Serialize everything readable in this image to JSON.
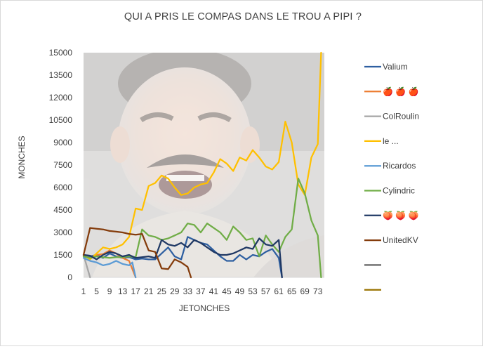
{
  "chart_data": {
    "type": "line",
    "title": "QUI A PRIS LE COMPAS DANS LE TROU A PIPI ?",
    "xlabel": "JETONCHES",
    "ylabel": "MONCHES",
    "ylim": [
      0,
      15000
    ],
    "xlim": [
      1,
      75
    ],
    "y_ticks": [
      0,
      1500,
      3000,
      4500,
      6000,
      7500,
      9000,
      10500,
      12000,
      13500,
      15000
    ],
    "x_ticks": [
      1,
      5,
      9,
      13,
      17,
      21,
      25,
      29,
      33,
      37,
      41,
      45,
      49,
      53,
      57,
      61,
      65,
      69,
      73
    ],
    "y_tick_labels": [
      "0",
      "1500",
      "3000",
      "4500",
      "6000",
      "7500",
      "9000",
      "10500",
      "12000",
      "13500",
      "15000"
    ],
    "x_tick_labels": [
      "1",
      "5",
      "9",
      "13",
      "17",
      "21",
      "25",
      "29",
      "33",
      "37",
      "41",
      "45",
      "49",
      "53",
      "57",
      "61",
      "65",
      "69",
      "73"
    ],
    "grid": false,
    "legend_position": "right",
    "background_image": "laughing-man-photo",
    "series": [
      {
        "name": "Valium",
        "color": "#2e5fa1",
        "x": [
          1,
          3,
          5,
          7,
          9,
          11,
          13,
          15,
          17,
          19,
          21,
          23,
          25,
          27,
          29,
          31,
          33,
          35,
          37,
          39,
          41,
          43,
          45,
          47,
          49,
          51,
          53,
          55,
          57,
          59,
          61,
          62
        ],
        "y": [
          1500,
          1400,
          1500,
          1300,
          1600,
          1400,
          1300,
          1350,
          1200,
          1250,
          1200,
          1200,
          1600,
          2000,
          1400,
          1200,
          2700,
          2500,
          2300,
          2200,
          1800,
          1400,
          1100,
          1100,
          1500,
          1200,
          1500,
          1400,
          1700,
          1900,
          1300,
          0
        ]
      },
      {
        "name": "🍎 🍎 🍎",
        "color": "#ed7d31",
        "x": [
          1,
          3,
          5,
          7,
          9,
          11,
          13,
          15,
          17
        ],
        "y": [
          1400,
          1300,
          1500,
          1550,
          1800,
          1600,
          1300,
          1100,
          0
        ]
      },
      {
        "name": "ColRoulin",
        "color": "#a5a5a5",
        "x": [
          1,
          3
        ],
        "y": [
          1500,
          0
        ]
      },
      {
        "name": "le ...",
        "color": "#ffc000",
        "x": [
          1,
          3,
          5,
          7,
          9,
          11,
          13,
          15,
          17,
          19,
          21,
          23,
          25,
          27,
          29,
          31,
          33,
          35,
          37,
          39,
          41,
          43,
          45,
          47,
          49,
          51,
          53,
          55,
          57,
          59,
          61,
          63,
          65,
          67,
          69,
          71,
          73,
          74
        ],
        "y": [
          1500,
          1200,
          1600,
          2000,
          1900,
          2000,
          2200,
          2700,
          4600,
          4500,
          6100,
          6300,
          6800,
          6600,
          6000,
          5500,
          5600,
          6000,
          6200,
          6300,
          7000,
          7900,
          7600,
          7100,
          8000,
          7800,
          8500,
          8000,
          7400,
          7200,
          7700,
          10400,
          9000,
          6200,
          5500,
          8000,
          8900,
          15000
        ]
      },
      {
        "name": "Ricardos",
        "color": "#5b9bd5",
        "x": [
          1,
          3,
          5,
          7,
          9,
          11,
          13,
          15,
          16,
          17
        ],
        "y": [
          1300,
          1100,
          1000,
          800,
          900,
          1100,
          900,
          800,
          1000,
          0
        ]
      },
      {
        "name": "Cylindric",
        "color": "#70ad47",
        "x": [
          1,
          3,
          5,
          7,
          9,
          11,
          13,
          15,
          17,
          19,
          21,
          23,
          25,
          27,
          29,
          31,
          33,
          35,
          37,
          39,
          41,
          43,
          45,
          47,
          49,
          51,
          53,
          55,
          57,
          59,
          61,
          63,
          65,
          67,
          69,
          71,
          73,
          74
        ],
        "y": [
          1400,
          1300,
          1400,
          1350,
          1300,
          1350,
          1350,
          1400,
          1350,
          3200,
          2800,
          2700,
          2500,
          2600,
          2800,
          3000,
          3600,
          3500,
          3000,
          3600,
          3300,
          3000,
          2500,
          3400,
          3000,
          2500,
          2600,
          1400,
          2800,
          2200,
          1700,
          2700,
          3200,
          6600,
          5600,
          3800,
          2800,
          0
        ]
      },
      {
        "name": "🍑 🍑 🍑",
        "color": "#1f3864",
        "x": [
          1,
          3,
          5,
          7,
          9,
          11,
          13,
          15,
          17,
          19,
          21,
          23,
          25,
          27,
          29,
          31,
          33,
          35,
          37,
          39,
          41,
          43,
          45,
          47,
          49,
          51,
          53,
          55,
          57,
          59,
          61,
          62
        ],
        "y": [
          1500,
          1450,
          1200,
          1500,
          1700,
          1600,
          1400,
          1500,
          1300,
          1350,
          1400,
          1300,
          2500,
          2200,
          2100,
          2300,
          2000,
          2500,
          2300,
          2000,
          1700,
          1500,
          1500,
          1600,
          1800,
          2000,
          1900,
          2600,
          2200,
          2100,
          2500,
          0
        ]
      },
      {
        "name": "UnitedKV",
        "color": "#843c0c",
        "x": [
          1,
          3,
          5,
          7,
          9,
          11,
          13,
          15,
          17,
          19,
          21,
          23,
          25,
          27,
          29,
          31,
          33,
          34
        ],
        "y": [
          1500,
          3300,
          3250,
          3200,
          3100,
          3050,
          3000,
          2900,
          2850,
          2900,
          1800,
          1700,
          600,
          550,
          1200,
          1000,
          700,
          0
        ]
      },
      {
        "name": "",
        "color": "#636363",
        "x": [],
        "y": []
      },
      {
        "name": "",
        "color": "#997300",
        "x": [],
        "y": []
      }
    ]
  }
}
